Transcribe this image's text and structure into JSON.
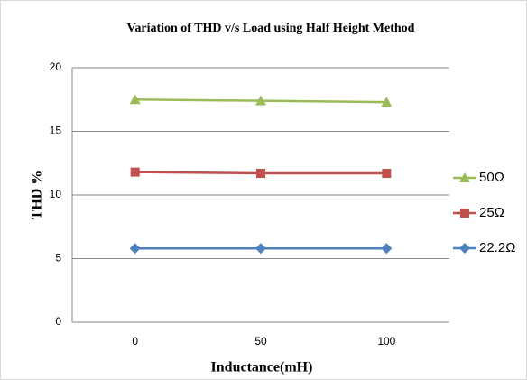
{
  "chart_data": {
    "type": "line",
    "title": "Variation of THD v/s Load using Half Height Method",
    "x_label": "Inductance(mH)",
    "y_label": "THD %",
    "categories": [
      "0",
      "50",
      "100"
    ],
    "series": [
      {
        "name": "50Ω",
        "color": "#9bbb59",
        "marker": "triangle",
        "values": [
          17.5,
          17.4,
          17.3
        ]
      },
      {
        "name": "25Ω",
        "color": "#c0504d",
        "marker": "square",
        "values": [
          11.8,
          11.7,
          11.7
        ]
      },
      {
        "name": "22.2Ω",
        "color": "#4f81bd",
        "marker": "diamond",
        "values": [
          5.8,
          5.8,
          5.8
        ]
      }
    ],
    "ylim": [
      0,
      20
    ],
    "yticks": [
      0,
      5,
      10,
      15,
      20
    ],
    "grid": true,
    "legend": "right"
  }
}
